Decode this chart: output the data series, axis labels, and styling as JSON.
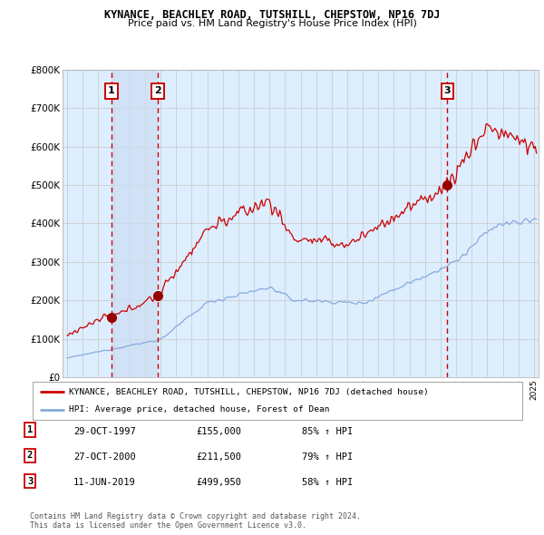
{
  "title": "KYNANCE, BEACHLEY ROAD, TUTSHILL, CHEPSTOW, NP16 7DJ",
  "subtitle": "Price paid vs. HM Land Registry's House Price Index (HPI)",
  "ylabel_ticks": [
    "£0",
    "£100K",
    "£200K",
    "£300K",
    "£400K",
    "£500K",
    "£600K",
    "£700K",
    "£800K"
  ],
  "ylim": [
    0,
    800000
  ],
  "xlim_start": 1994.7,
  "xlim_end": 2025.3,
  "sale_dates": [
    1997.83,
    2000.83,
    2019.44
  ],
  "sale_prices": [
    155000,
    211500,
    499950
  ],
  "sale_labels": [
    "1",
    "2",
    "3"
  ],
  "vline_color": "#cc0000",
  "property_line_color": "#cc0000",
  "hpi_line_color": "#88aadd",
  "shade_color": "#ccddf5",
  "legend_property": "KYNANCE, BEACHLEY ROAD, TUTSHILL, CHEPSTOW, NP16 7DJ (detached house)",
  "legend_hpi": "HPI: Average price, detached house, Forest of Dean",
  "table_data": [
    [
      "1",
      "29-OCT-1997",
      "£155,000",
      "85% ↑ HPI"
    ],
    [
      "2",
      "27-OCT-2000",
      "£211,500",
      "79% ↑ HPI"
    ],
    [
      "3",
      "11-JUN-2019",
      "£499,950",
      "58% ↑ HPI"
    ]
  ],
  "footnote": "Contains HM Land Registry data © Crown copyright and database right 2024.\nThis data is licensed under the Open Government Licence v3.0.",
  "background_color": "#ffffff",
  "grid_color": "#cccccc",
  "plot_bg_color": "#ddeeff"
}
